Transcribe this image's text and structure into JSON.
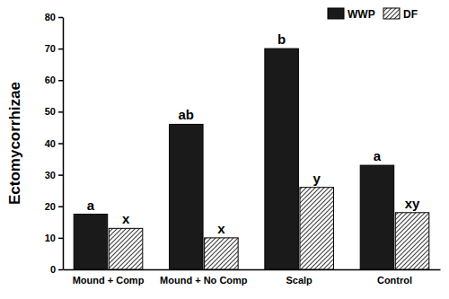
{
  "chart_data": {
    "type": "bar",
    "y_label": "Ectomycorrhizae",
    "categories": [
      "Mound + Comp",
      "Mound + No Comp",
      "Scalp",
      "Control"
    ],
    "series": [
      {
        "name": "WWP",
        "color": "#1a1a1a",
        "values": [
          17.5,
          46,
          70,
          33
        ],
        "significance": [
          "a",
          "ab",
          "b",
          "a"
        ]
      },
      {
        "name": "DF",
        "color": "#444444",
        "values": [
          13,
          10,
          26,
          18
        ],
        "significance": [
          "x",
          "x",
          "y",
          "xy"
        ]
      }
    ],
    "ylim": [
      0,
      80
    ],
    "yticks": [
      0,
      10,
      20,
      30,
      40,
      50,
      60,
      70,
      80
    ],
    "legend": "upper right"
  }
}
